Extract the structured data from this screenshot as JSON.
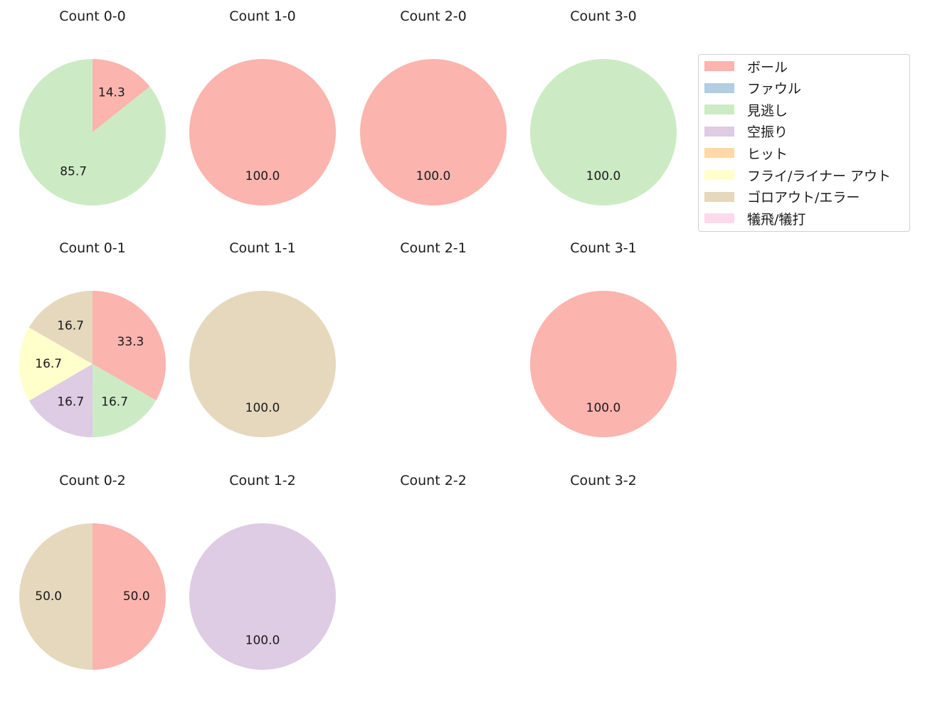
{
  "chart_data": {
    "type": "pie",
    "legend_placement": "right",
    "categories": [
      "ボール",
      "ファウル",
      "見逃し",
      "空振り",
      "ヒット",
      "フライ/ライナー アウト",
      "ゴロアウト/エラー",
      "犠飛/犠打"
    ],
    "colors": [
      "#fbb4ae",
      "#b3cde3",
      "#ccebc5",
      "#decbe4",
      "#fed9a6",
      "#ffffcc",
      "#e5d8bd",
      "#fddaec"
    ],
    "charts": [
      {
        "title": "Count 0-0",
        "values": [
          14.3,
          0,
          85.7,
          0,
          0,
          0,
          0,
          0
        ],
        "labels": [
          "14.3",
          "",
          "85.7",
          "",
          "",
          "",
          "",
          ""
        ]
      },
      {
        "title": "Count 1-0",
        "values": [
          100,
          0,
          0,
          0,
          0,
          0,
          0,
          0
        ],
        "labels": [
          "100.0",
          "",
          "",
          "",
          "",
          "",
          "",
          ""
        ]
      },
      {
        "title": "Count 2-0",
        "values": [
          100,
          0,
          0,
          0,
          0,
          0,
          0,
          0
        ],
        "labels": [
          "100.0",
          "",
          "",
          "",
          "",
          "",
          "",
          ""
        ]
      },
      {
        "title": "Count 3-0",
        "values": [
          0,
          0,
          100,
          0,
          0,
          0,
          0,
          0
        ],
        "labels": [
          "",
          "",
          "100.0",
          "",
          "",
          "",
          "",
          ""
        ]
      },
      {
        "title": "Count 0-1",
        "values": [
          33.3,
          0,
          16.7,
          16.7,
          0,
          16.7,
          16.7,
          0
        ],
        "labels": [
          "33.3",
          "",
          "16.7",
          "16.7",
          "",
          "16.7",
          "16.7",
          ""
        ]
      },
      {
        "title": "Count 1-1",
        "values": [
          0,
          0,
          0,
          0,
          0,
          0,
          100,
          0
        ],
        "labels": [
          "",
          "",
          "",
          "",
          "",
          "",
          "100.0",
          ""
        ]
      },
      {
        "title": "Count 2-1",
        "values": [],
        "labels": []
      },
      {
        "title": "Count 3-1",
        "values": [
          100,
          0,
          0,
          0,
          0,
          0,
          0,
          0
        ],
        "labels": [
          "100.0",
          "",
          "",
          "",
          "",
          "",
          "",
          ""
        ]
      },
      {
        "title": "Count 0-2",
        "values": [
          50,
          0,
          0,
          0,
          0,
          0,
          50,
          0
        ],
        "labels": [
          "50.0",
          "",
          "",
          "",
          "",
          "",
          "50.0",
          ""
        ]
      },
      {
        "title": "Count 1-2",
        "values": [
          0,
          0,
          0,
          100,
          0,
          0,
          0,
          0
        ],
        "labels": [
          "",
          "",
          "",
          "100.0",
          "",
          "",
          "",
          ""
        ]
      },
      {
        "title": "Count 2-2",
        "values": [],
        "labels": []
      },
      {
        "title": "Count 3-2",
        "values": [],
        "labels": []
      }
    ]
  }
}
